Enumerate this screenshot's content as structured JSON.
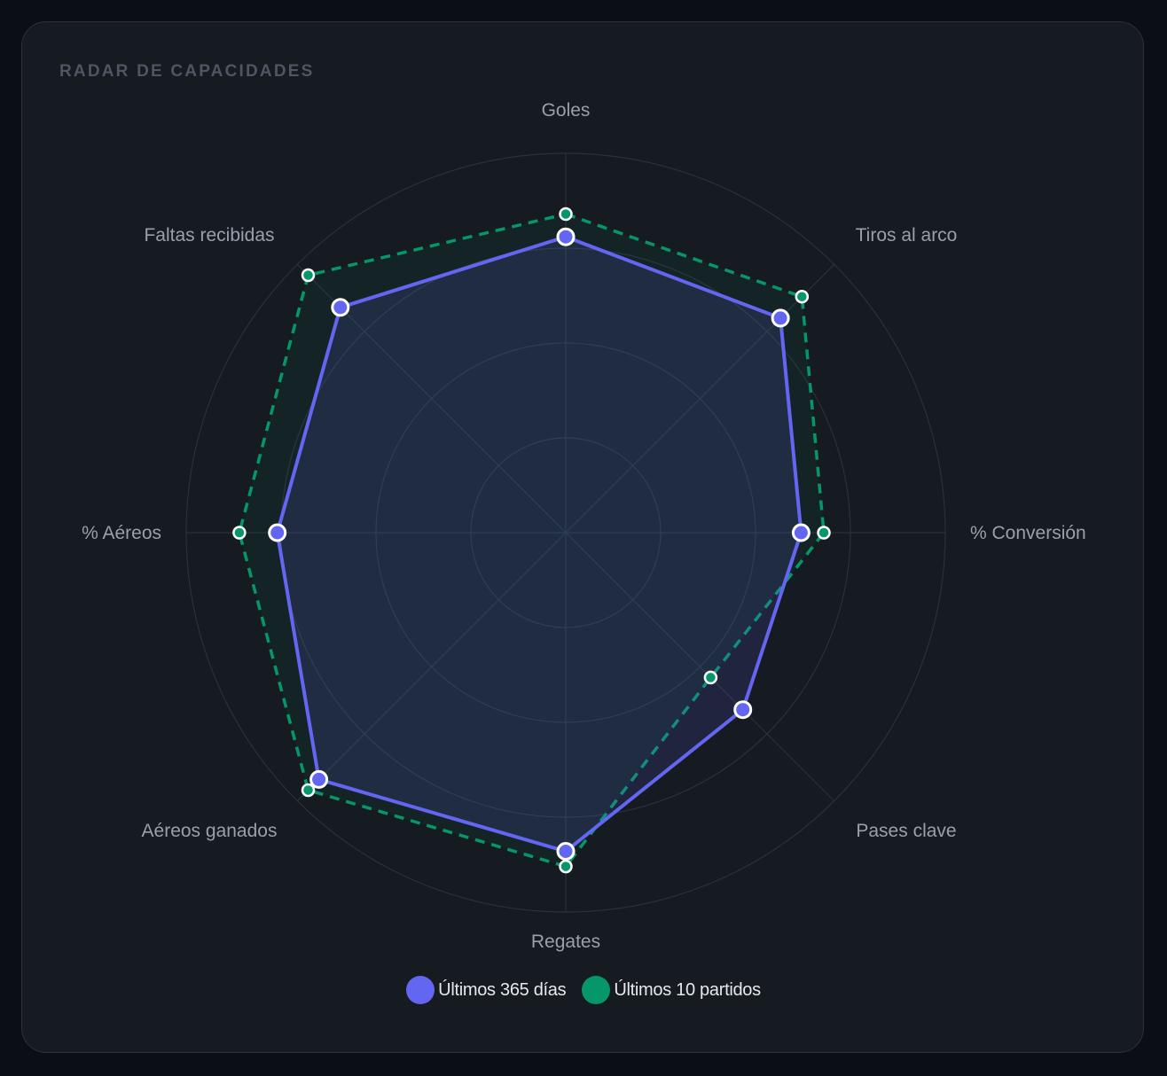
{
  "card": {
    "title": "RADAR DE CAPACIDADES"
  },
  "colors": {
    "series_a": "#6366f1",
    "series_b": "#059669",
    "grid": "#2b303a",
    "point_fill": "#ffffff"
  },
  "chart_data": {
    "type": "radar",
    "title": "",
    "axes": [
      "Goles",
      "Tiros al arco",
      "% Conversión",
      "Pases clave",
      "Regates",
      "Aéreos ganados",
      "% Aéreos",
      "Faltas recibidas"
    ],
    "range": [
      0,
      100
    ],
    "grid_rings": 4,
    "legend_position": "bottom",
    "series": [
      {
        "name": "Últimos 365 días",
        "values": [
          78,
          80,
          62,
          66,
          84,
          92,
          76,
          84
        ],
        "line_style": "solid",
        "color": "#6366f1"
      },
      {
        "name": "Últimos 10 partidos",
        "values": [
          84,
          88,
          68,
          54,
          88,
          96,
          86,
          96
        ],
        "line_style": "dashed",
        "color": "#059669"
      }
    ]
  }
}
